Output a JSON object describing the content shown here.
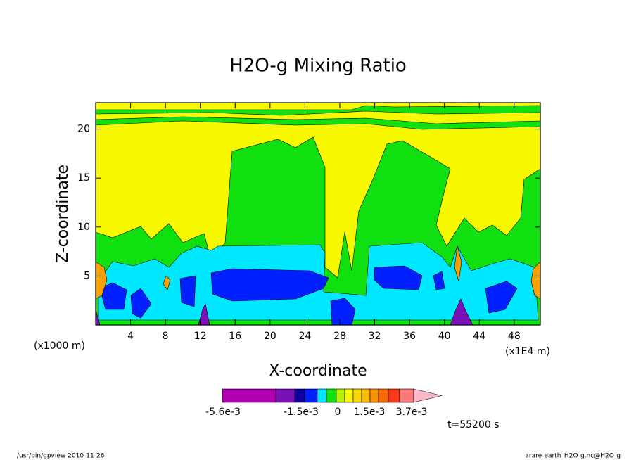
{
  "chart_data": {
    "type": "contour",
    "title": "H2O-g Mixing Ratio",
    "x_label": "X-coordinate",
    "y_label": "Z-coordinate",
    "x_unit_left": "(x1000 m)",
    "x_unit_right": "(x1E4 m)",
    "time_label": "t=55200 s",
    "xlim": [
      0,
      51
    ],
    "ylim": [
      0,
      22.7
    ],
    "xticks": [
      4,
      8,
      12,
      16,
      20,
      24,
      28,
      32,
      36,
      40,
      44,
      48
    ],
    "yticks": [
      5,
      10,
      15,
      20
    ],
    "colorbar": {
      "colors": [
        "#b000b0",
        "#7a10b8",
        "#1000a0",
        "#0020ff",
        "#00e8ff",
        "#10e010",
        "#b8f000",
        "#f8f800",
        "#f8d800",
        "#f8b800",
        "#f89000",
        "#f86800",
        "#f83818",
        "#f87878",
        "#f8b8c8"
      ],
      "ticks": [
        {
          "value": -0.0056,
          "label": "-5.6e-3"
        },
        {
          "value": -0.0015,
          "label": "-1.5e-3"
        },
        0,
        {
          "value": 0.0015,
          "label": "1.5e-3"
        },
        {
          "value": 0.0037,
          "label": "3.7e-3"
        }
      ]
    },
    "footer_left": "/usr/bin/gpview  2010-11-26",
    "footer_right": "arare-earth_H2O-g.nc@H2O-g"
  }
}
